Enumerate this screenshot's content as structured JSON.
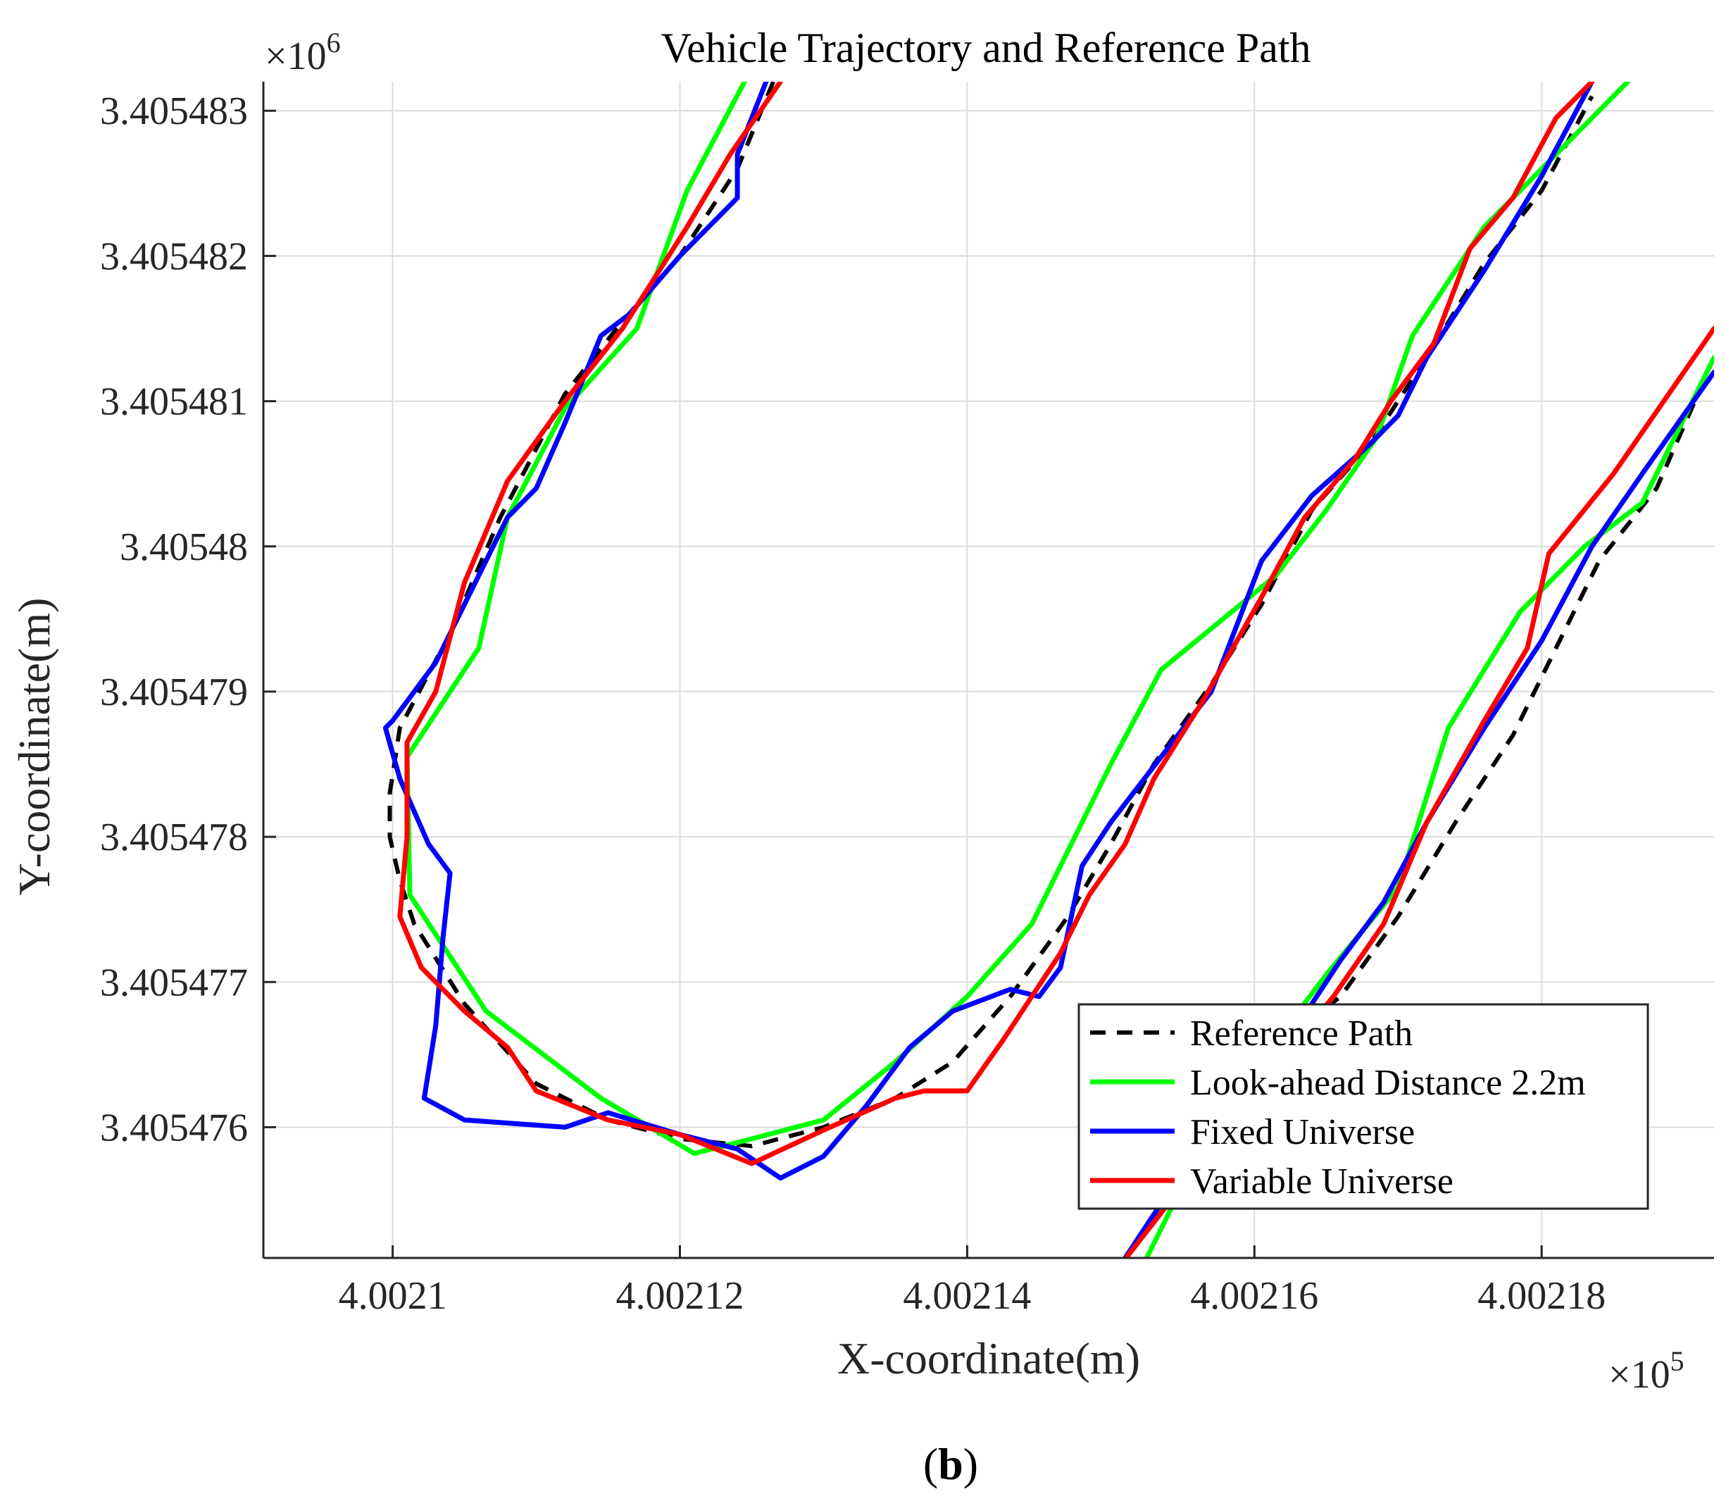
{
  "chart_data": {
    "type": "line",
    "title": "Vehicle Trajectory and Reference Path",
    "xlabel": "X-coordinate(m)",
    "ylabel": "Y-coordinate(m)",
    "x_exponent_label": "×10",
    "x_exponent_power": "5",
    "y_exponent_label": "×10",
    "y_exponent_power": "6",
    "caption_open": "(",
    "caption_letter": "b",
    "caption_close": ")",
    "xlim": [
      400209.1,
      400219.2
    ],
    "ylim": [
      3405475.1,
      3405483.2
    ],
    "grid": true,
    "legend_position": "bottom-right",
    "xticks": [
      {
        "value": 400210,
        "label": "4.0021"
      },
      {
        "value": 400212,
        "label": "4.00212"
      },
      {
        "value": 400214,
        "label": "4.00214"
      },
      {
        "value": 400216,
        "label": "4.00216"
      },
      {
        "value": 400218,
        "label": "4.00218"
      }
    ],
    "yticks": [
      {
        "value": 3405476,
        "label": "3.405476"
      },
      {
        "value": 3405477,
        "label": "3.405477"
      },
      {
        "value": 3405478,
        "label": "3.405478"
      },
      {
        "value": 3405479,
        "label": "3.405479"
      },
      {
        "value": 3405480,
        "label": "3.40548"
      },
      {
        "value": 3405481,
        "label": "3.405481"
      },
      {
        "value": 3405482,
        "label": "3.405482"
      },
      {
        "value": 3405483,
        "label": "3.405483"
      }
    ],
    "series": [
      {
        "name": "Reference Path",
        "color": "#000000",
        "dashed": true,
        "segments": [
          [
            [
              400212.65,
              3405483.2
            ],
            [
              400212.4,
              3405482.6
            ],
            [
              400212.0,
              3405482.0
            ],
            [
              400211.6,
              3405481.55
            ],
            [
              400211.2,
              3405481.05
            ],
            [
              400210.75,
              3405480.2
            ],
            [
              400210.4,
              3405479.4
            ],
            [
              400210.05,
              3405478.75
            ],
            [
              400209.98,
              3405478.3
            ],
            [
              400209.98,
              3405478.0
            ],
            [
              400210.05,
              3405477.7
            ],
            [
              400210.15,
              3405477.4
            ],
            [
              400210.5,
              3405476.85
            ],
            [
              400211.0,
              3405476.3
            ],
            [
              400211.5,
              3405476.05
            ],
            [
              400212.0,
              3405475.92
            ],
            [
              400212.5,
              3405475.87
            ],
            [
              400213.0,
              3405476.0
            ],
            [
              400213.5,
              3405476.2
            ],
            [
              400213.9,
              3405476.45
            ],
            [
              400214.3,
              3405476.9
            ],
            [
              400214.7,
              3405477.45
            ],
            [
              400215.0,
              3405477.95
            ],
            [
              400215.3,
              3405478.5
            ],
            [
              400215.7,
              3405479.05
            ],
            [
              400216.05,
              3405479.6
            ],
            [
              400216.4,
              3405480.25
            ],
            [
              400216.8,
              3405480.7
            ],
            [
              400217.2,
              3405481.3
            ],
            [
              400217.6,
              3405481.95
            ],
            [
              400218.0,
              3405482.45
            ],
            [
              400218.35,
              3405483.1
            ]
          ],
          [
            [
              400216.2,
              3405476.6
            ],
            [
              400216.6,
              3405476.9
            ],
            [
              400217.0,
              3405477.45
            ],
            [
              400217.4,
              3405478.1
            ],
            [
              400217.8,
              3405478.7
            ],
            [
              400218.1,
              3405479.3
            ],
            [
              400218.4,
              3405479.9
            ],
            [
              400218.8,
              3405480.4
            ],
            [
              400219.2,
              3405481.3
            ]
          ]
        ]
      },
      {
        "name": "Look-ahead Distance 2.2m",
        "color": "#00ff00",
        "dashed": false,
        "segments": [
          [
            [
              400212.45,
              3405483.2
            ],
            [
              400212.05,
              3405482.45
            ],
            [
              400211.7,
              3405481.5
            ],
            [
              400211.2,
              3405480.95
            ],
            [
              400210.8,
              3405480.2
            ],
            [
              400210.6,
              3405479.3
            ],
            [
              400210.1,
              3405478.55
            ],
            [
              400210.12,
              3405477.6
            ],
            [
              400210.65,
              3405476.8
            ],
            [
              400211.45,
              3405476.2
            ],
            [
              400212.1,
              3405475.82
            ],
            [
              400212.5,
              3405475.92
            ],
            [
              400213.0,
              3405476.05
            ],
            [
              400213.5,
              3405476.45
            ],
            [
              400214.0,
              3405476.9
            ],
            [
              400214.45,
              3405477.4
            ],
            [
              400215.0,
              3405478.5
            ],
            [
              400215.35,
              3405479.15
            ],
            [
              400216.15,
              3405479.8
            ],
            [
              400216.5,
              3405480.25
            ],
            [
              400216.85,
              3405480.75
            ],
            [
              400217.1,
              3405481.45
            ],
            [
              400217.6,
              3405482.2
            ],
            [
              400218.05,
              3405482.65
            ],
            [
              400218.6,
              3405483.2
            ]
          ],
          [
            [
              400215.15,
              3405474.9
            ],
            [
              400215.5,
              3405475.6
            ],
            [
              400216.0,
              3405476.4
            ],
            [
              400216.5,
              3405477.05
            ],
            [
              400217.0,
              3405477.65
            ],
            [
              400217.35,
              3405478.75
            ],
            [
              400217.85,
              3405479.55
            ],
            [
              400218.3,
              3405480.0
            ],
            [
              400218.7,
              3405480.3
            ],
            [
              400219.2,
              3405481.3
            ]
          ]
        ]
      },
      {
        "name": "Fixed Universe",
        "color": "#0000ff",
        "dashed": false,
        "segments": [
          [
            [
              400212.6,
              3405483.2
            ],
            [
              400212.4,
              3405482.7
            ],
            [
              400212.4,
              3405482.4
            ],
            [
              400212.0,
              3405482.0
            ],
            [
              400211.65,
              3405481.6
            ],
            [
              400211.45,
              3405481.45
            ],
            [
              400211.2,
              3405480.85
            ],
            [
              400211.0,
              3405480.4
            ],
            [
              400210.8,
              3405480.2
            ],
            [
              400210.5,
              3405479.6
            ],
            [
              400210.3,
              3405479.2
            ],
            [
              400210.0,
              3405478.8
            ],
            [
              400209.95,
              3405478.75
            ],
            [
              400210.05,
              3405478.4
            ],
            [
              400210.25,
              3405477.95
            ],
            [
              400210.4,
              3405477.75
            ],
            [
              400210.35,
              3405477.3
            ],
            [
              400210.3,
              3405476.7
            ],
            [
              400210.22,
              3405476.2
            ],
            [
              400210.5,
              3405476.05
            ],
            [
              400211.2,
              3405476.0
            ],
            [
              400211.5,
              3405476.1
            ],
            [
              400212.0,
              3405475.95
            ],
            [
              400212.4,
              3405475.85
            ],
            [
              400212.7,
              3405475.65
            ],
            [
              400213.0,
              3405475.8
            ],
            [
              400213.3,
              3405476.15
            ],
            [
              400213.6,
              3405476.55
            ],
            [
              400213.9,
              3405476.8
            ],
            [
              400214.3,
              3405476.95
            ],
            [
              400214.5,
              3405476.9
            ],
            [
              400214.65,
              3405477.1
            ],
            [
              400214.8,
              3405477.8
            ],
            [
              400215.0,
              3405478.1
            ],
            [
              400215.35,
              3405478.55
            ],
            [
              400215.7,
              3405479.0
            ],
            [
              400216.05,
              3405479.9
            ],
            [
              400216.4,
              3405480.35
            ],
            [
              400216.8,
              3405480.7
            ],
            [
              400217.0,
              3405480.9
            ],
            [
              400217.2,
              3405481.3
            ],
            [
              400217.6,
              3405481.9
            ],
            [
              400218.0,
              3405482.55
            ],
            [
              400218.35,
              3405483.2
            ]
          ],
          [
            [
              400215.0,
              3405474.95
            ],
            [
              400215.3,
              3405475.4
            ],
            [
              400215.8,
              3405476.1
            ],
            [
              400216.3,
              3405476.7
            ],
            [
              400216.6,
              3405477.15
            ],
            [
              400216.9,
              3405477.55
            ],
            [
              400217.2,
              3405478.1
            ],
            [
              400217.6,
              3405478.75
            ],
            [
              400218.0,
              3405479.35
            ],
            [
              400218.35,
              3405480.0
            ],
            [
              400218.7,
              3405480.5
            ],
            [
              400219.2,
              3405481.2
            ]
          ]
        ]
      },
      {
        "name": "Variable Universe",
        "color": "#ff0000",
        "dashed": false,
        "segments": [
          [
            [
              400212.7,
              3405483.2
            ],
            [
              400212.35,
              3405482.7
            ],
            [
              400212.05,
              3405482.2
            ],
            [
              400211.6,
              3405481.5
            ],
            [
              400211.2,
              3405481.0
            ],
            [
              400210.8,
              3405480.45
            ],
            [
              400210.5,
              3405479.75
            ],
            [
              400210.3,
              3405479.0
            ],
            [
              400210.1,
              3405478.65
            ],
            [
              400210.1,
              3405478.0
            ],
            [
              400210.05,
              3405477.45
            ],
            [
              400210.2,
              3405477.1
            ],
            [
              400210.5,
              3405476.8
            ],
            [
              400210.8,
              3405476.55
            ],
            [
              400211.0,
              3405476.25
            ],
            [
              400211.5,
              3405476.05
            ],
            [
              400212.0,
              3405475.95
            ],
            [
              400212.5,
              3405475.75
            ],
            [
              400213.0,
              3405475.98
            ],
            [
              400213.5,
              3405476.2
            ],
            [
              400213.7,
              3405476.25
            ],
            [
              400214.0,
              3405476.25
            ],
            [
              400214.25,
              3405476.6
            ],
            [
              400214.65,
              3405477.2
            ],
            [
              400214.85,
              3405477.6
            ],
            [
              400215.1,
              3405477.95
            ],
            [
              400215.3,
              3405478.4
            ],
            [
              400215.65,
              3405478.95
            ],
            [
              400216.05,
              3405479.65
            ],
            [
              400216.35,
              3405480.2
            ],
            [
              400216.7,
              3405480.6
            ],
            [
              400216.95,
              3405481.0
            ],
            [
              400217.25,
              3405481.4
            ],
            [
              400217.5,
              3405482.05
            ],
            [
              400217.8,
              3405482.4
            ],
            [
              400218.1,
              3405482.95
            ],
            [
              400218.35,
              3405483.2
            ]
          ],
          [
            [
              400214.95,
              3405474.9
            ],
            [
              400215.5,
              3405475.6
            ],
            [
              400216.05,
              3405476.3
            ],
            [
              400216.55,
              3405476.9
            ],
            [
              400216.9,
              3405477.4
            ],
            [
              400217.2,
              3405478.1
            ],
            [
              400217.6,
              3405478.8
            ],
            [
              400217.9,
              3405479.3
            ],
            [
              400218.05,
              3405479.95
            ],
            [
              400218.5,
              3405480.5
            ],
            [
              400219.2,
              3405481.5
            ]
          ]
        ]
      }
    ]
  }
}
